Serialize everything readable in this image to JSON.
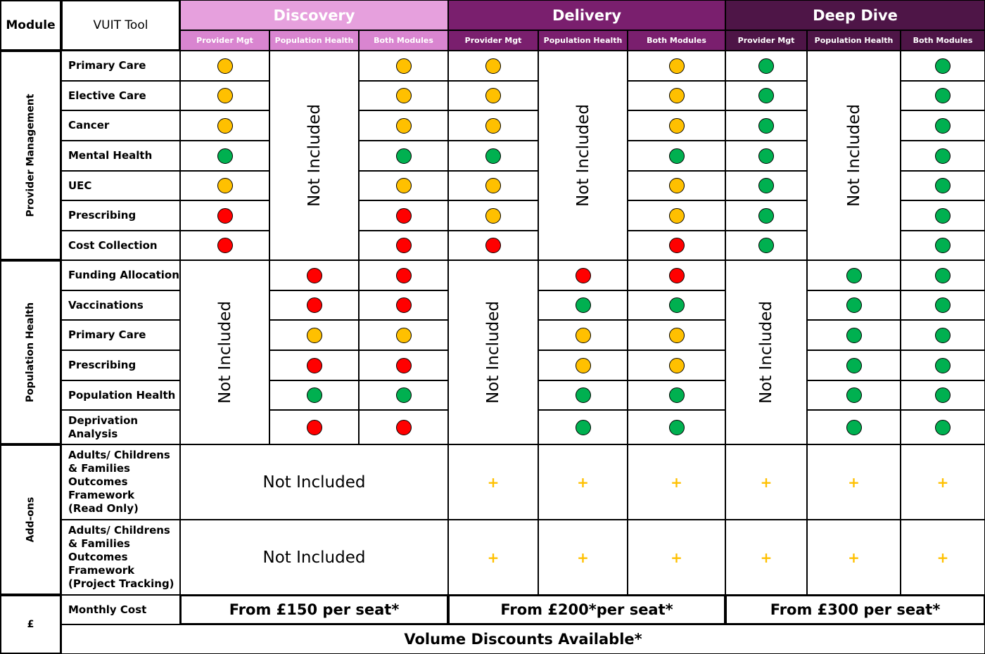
{
  "header": {
    "module_label": "Module",
    "tool_label": "VUIT Tool",
    "tiers": [
      {
        "name": "Discovery",
        "color": "#E6A0DD",
        "sub_color": "#D985D0"
      },
      {
        "name": "Delivery",
        "color": "#7A1F6E",
        "sub_color": "#7A1F6E"
      },
      {
        "name": "Deep Dive",
        "color": "#4E1547",
        "sub_color": "#4E1547"
      }
    ],
    "sub_columns": [
      "Provider Mgt",
      "Population Health",
      "Both Modules"
    ]
  },
  "sections": {
    "provider_management": "Provider Management",
    "population_health": "Population Health",
    "add_ons": "Add-ons",
    "cost": "£"
  },
  "not_included": "Not Included",
  "colors": {
    "amber": "#FFC000",
    "green": "#00B050",
    "red": "#FF0000"
  },
  "provider_rows": [
    {
      "label": "Primary Care",
      "discovery": [
        "amber",
        "amber"
      ],
      "delivery": [
        "amber",
        "amber"
      ],
      "deep_dive": [
        "green",
        "green"
      ]
    },
    {
      "label": "Elective Care",
      "discovery": [
        "amber",
        "amber"
      ],
      "delivery": [
        "amber",
        "amber"
      ],
      "deep_dive": [
        "green",
        "green"
      ]
    },
    {
      "label": "Cancer",
      "discovery": [
        "amber",
        "amber"
      ],
      "delivery": [
        "amber",
        "amber"
      ],
      "deep_dive": [
        "green",
        "green"
      ]
    },
    {
      "label": "Mental Health",
      "discovery": [
        "green",
        "green"
      ],
      "delivery": [
        "green",
        "green"
      ],
      "deep_dive": [
        "green",
        "green"
      ]
    },
    {
      "label": "UEC",
      "discovery": [
        "amber",
        "amber"
      ],
      "delivery": [
        "amber",
        "amber"
      ],
      "deep_dive": [
        "green",
        "green"
      ]
    },
    {
      "label": "Prescribing",
      "discovery": [
        "red",
        "red"
      ],
      "delivery": [
        "amber",
        "amber"
      ],
      "deep_dive": [
        "green",
        "green"
      ]
    },
    {
      "label": "Cost Collection",
      "discovery": [
        "red",
        "red"
      ],
      "delivery": [
        "red",
        "red"
      ],
      "deep_dive": [
        "green",
        "green"
      ]
    }
  ],
  "population_rows": [
    {
      "label": "Funding Allocation",
      "discovery": [
        "red",
        "red"
      ],
      "delivery": [
        "red",
        "red"
      ],
      "deep_dive": [
        "green",
        "green"
      ]
    },
    {
      "label": "Vaccinations",
      "discovery": [
        "red",
        "red"
      ],
      "delivery": [
        "green",
        "green"
      ],
      "deep_dive": [
        "green",
        "green"
      ]
    },
    {
      "label": "Primary Care",
      "discovery": [
        "amber",
        "amber"
      ],
      "delivery": [
        "amber",
        "amber"
      ],
      "deep_dive": [
        "green",
        "green"
      ]
    },
    {
      "label": "Prescribing",
      "discovery": [
        "red",
        "red"
      ],
      "delivery": [
        "amber",
        "amber"
      ],
      "deep_dive": [
        "green",
        "green"
      ]
    },
    {
      "label": "Population Health",
      "discovery": [
        "green",
        "green"
      ],
      "delivery": [
        "green",
        "green"
      ],
      "deep_dive": [
        "green",
        "green"
      ]
    },
    {
      "label": "Deprivation Analysis",
      "discovery": [
        "red",
        "red"
      ],
      "delivery": [
        "green",
        "green"
      ],
      "deep_dive": [
        "green",
        "green"
      ]
    }
  ],
  "addon_rows": [
    {
      "lines": [
        "Adults/ Childrens",
        "& Families",
        "Outcomes",
        "Framework",
        "(Read Only)"
      ]
    },
    {
      "lines": [
        "Adults/ Childrens",
        "& Families",
        "Outcomes",
        "Framework",
        "(Project Tracking)"
      ]
    }
  ],
  "plus_symbol": "+",
  "cost": {
    "label": "Monthly Cost",
    "prices": [
      "From £150 per seat*",
      "From £200*per seat*",
      "From £300 per seat*"
    ],
    "volume": "Volume Discounts Available*"
  }
}
